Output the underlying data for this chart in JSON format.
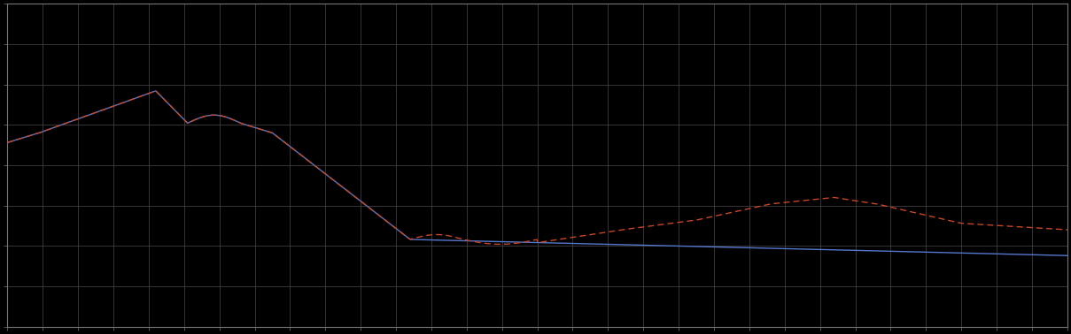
{
  "background_color": "#000000",
  "plot_bg_color": "#000000",
  "grid_color": "#4a4a4a",
  "line1_color": "#5577cc",
  "line2_color": "#cc4422",
  "figsize": [
    12.09,
    3.78
  ],
  "dpi": 100,
  "xlim": [
    0,
    100
  ],
  "ylim": [
    0,
    100
  ],
  "spine_color": "#777777",
  "tick_color": "#777777",
  "n_gridlines_x": 30,
  "n_gridlines_y": 8
}
